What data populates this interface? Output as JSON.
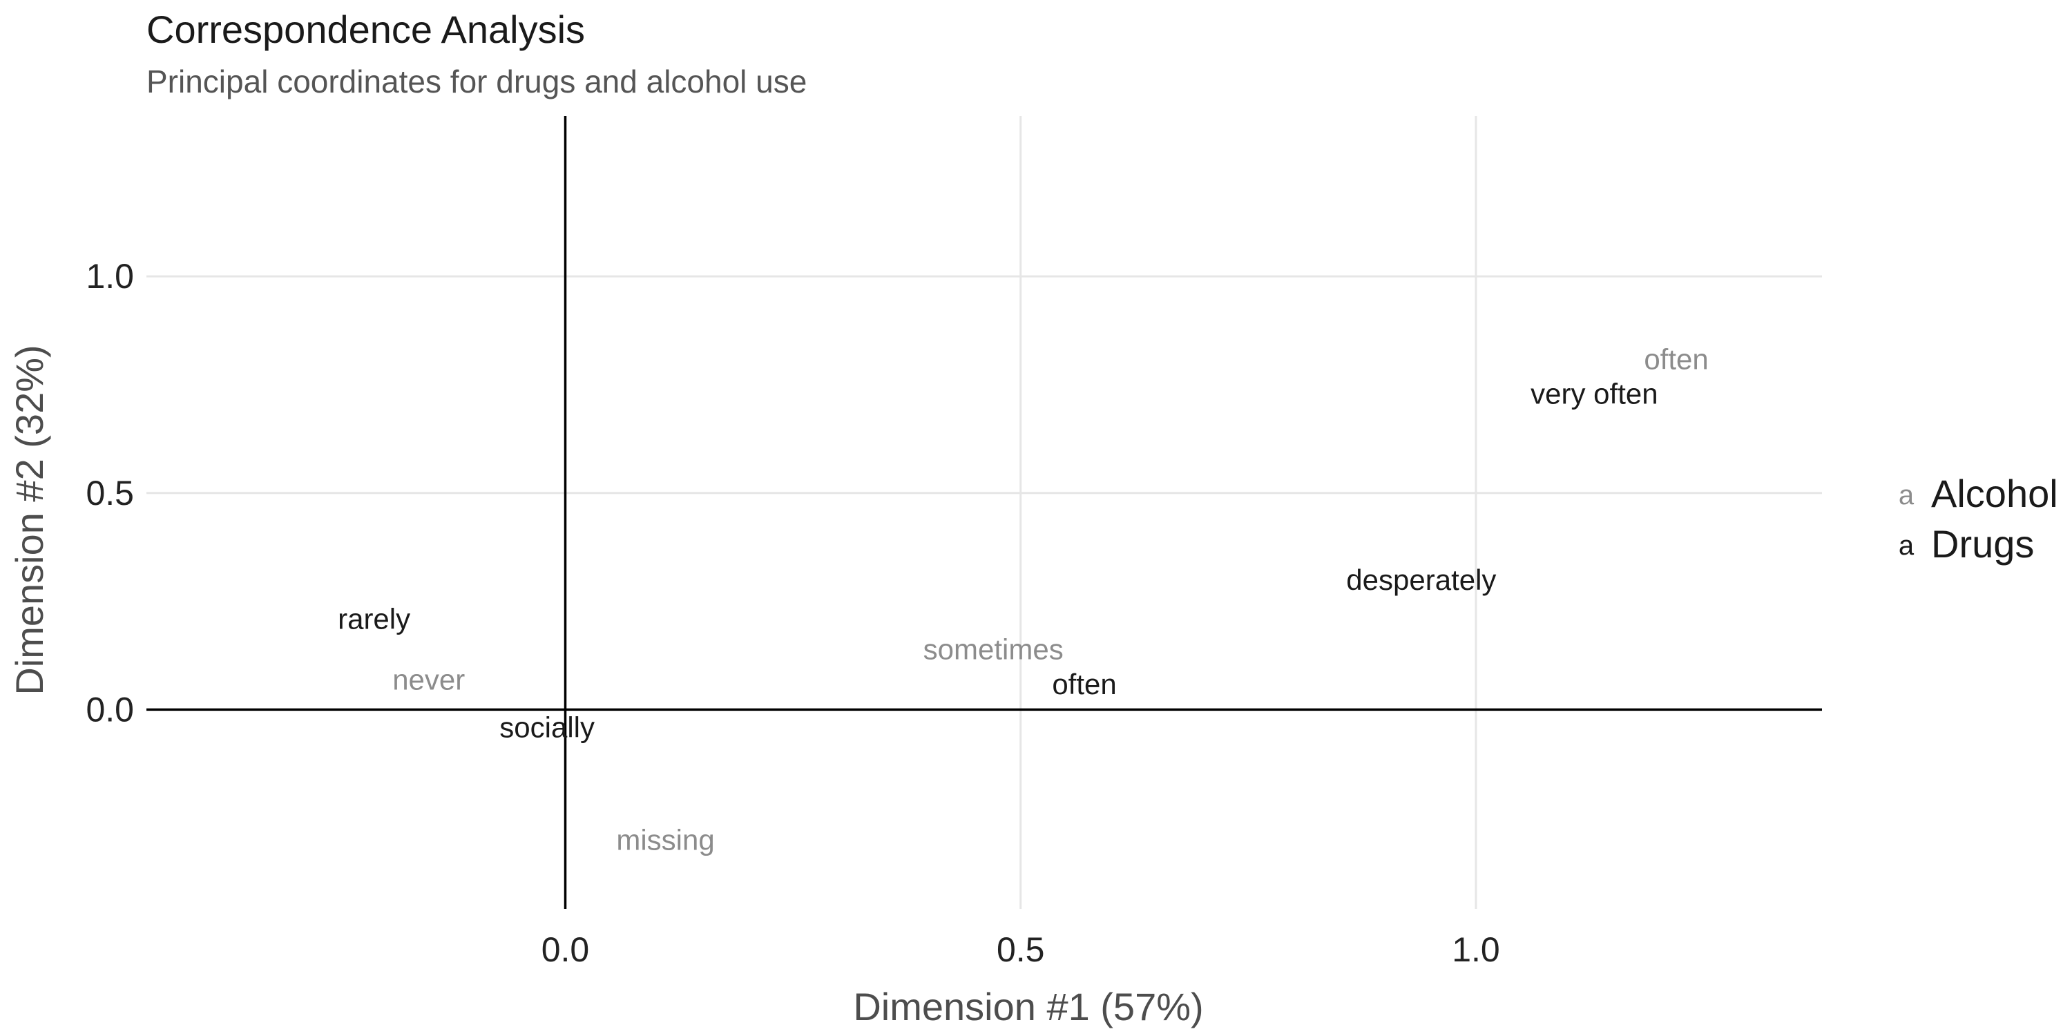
{
  "chart_data": {
    "type": "scatter",
    "title": "Correspondence Analysis",
    "subtitle": "Principal coordinates for drugs and alcohol use",
    "xlabel": "Dimension #1 (57%)",
    "ylabel": "Dimension #2 (32%)",
    "xlim": [
      -0.46,
      1.38
    ],
    "ylim": [
      -0.46,
      1.37
    ],
    "xticks": [
      0.0,
      0.5,
      1.0
    ],
    "xtick_labels": [
      "0.0",
      "0.5",
      "1.0"
    ],
    "yticks": [
      0.0,
      0.5,
      1.0
    ],
    "ytick_labels": [
      "0.0",
      "0.5",
      "1.0"
    ],
    "grid": true,
    "legend": "right",
    "legend_key_glyph": "a",
    "series": [
      {
        "name": "Alcohol",
        "color": "#8c8c8c",
        "points": [
          {
            "label": "often",
            "x": 1.22,
            "y": 0.81
          },
          {
            "label": "never",
            "x": -0.15,
            "y": 0.07
          },
          {
            "label": "sometimes",
            "x": 0.47,
            "y": 0.14
          },
          {
            "label": "missing",
            "x": 0.11,
            "y": -0.3
          }
        ]
      },
      {
        "name": "Drugs",
        "color": "#1a1a1a",
        "points": [
          {
            "label": "very often",
            "x": 1.13,
            "y": 0.73
          },
          {
            "label": "desperately",
            "x": 0.94,
            "y": 0.3
          },
          {
            "label": "rarely",
            "x": -0.21,
            "y": 0.21
          },
          {
            "label": "often",
            "x": 0.57,
            "y": 0.06
          },
          {
            "label": "socially",
            "x": -0.02,
            "y": -0.04
          }
        ]
      }
    ]
  }
}
